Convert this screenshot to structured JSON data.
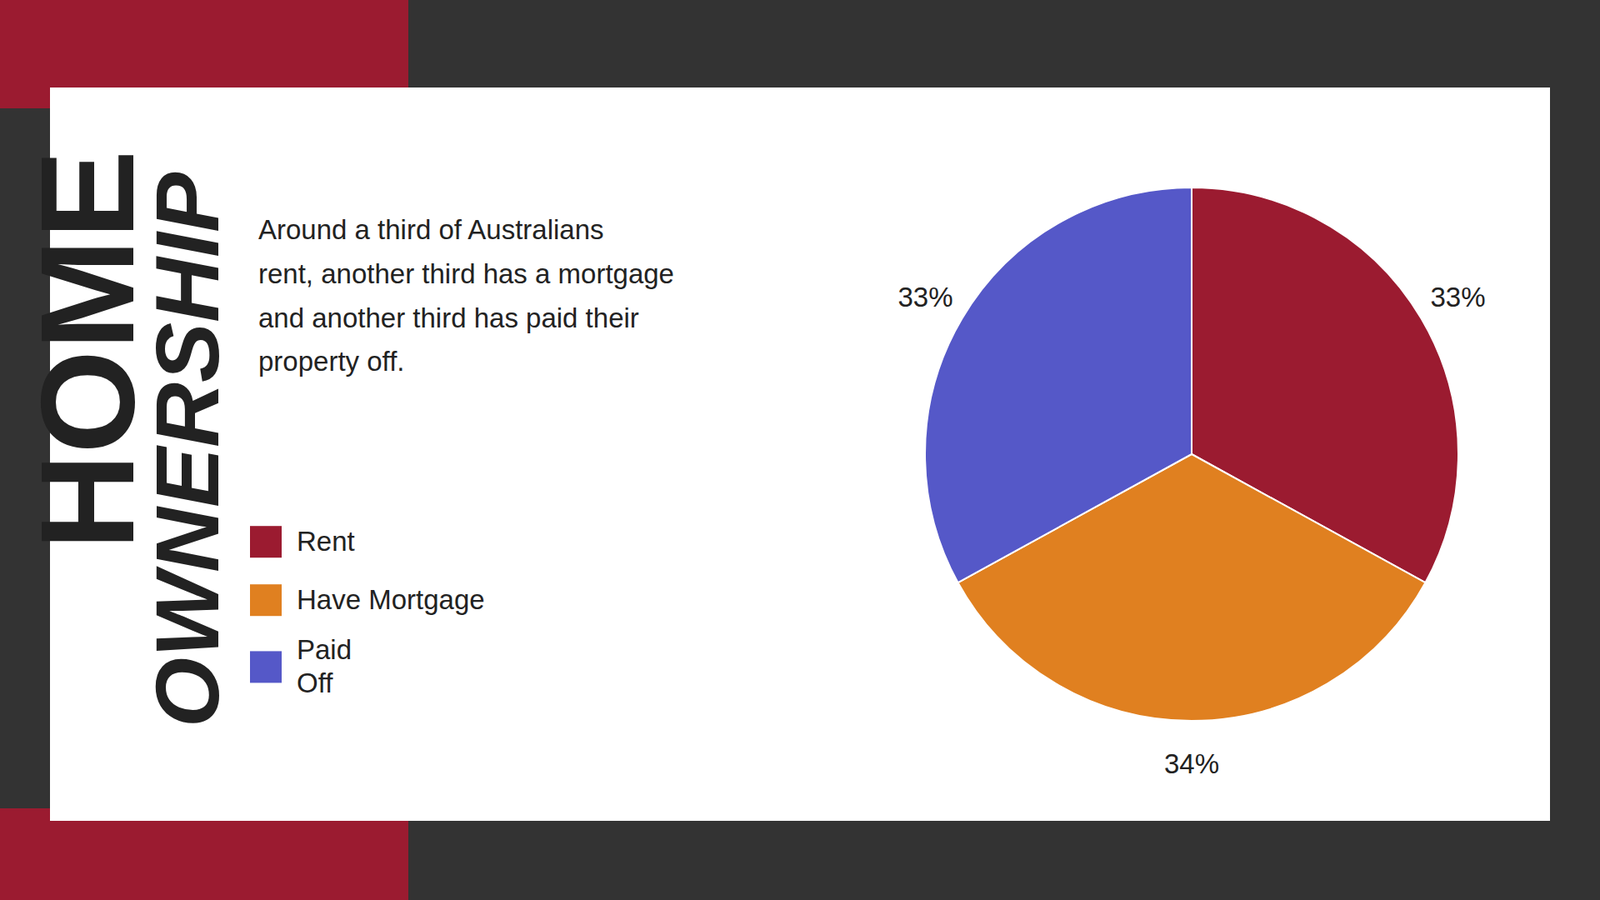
{
  "chart_data": {
    "type": "pie",
    "title": "HOME",
    "subtitle": "OWNERSHIP",
    "annotations": [
      "Around a third of Australians\nrent, another third has a mortgage\nand another third has paid their\nproperty off."
    ],
    "categories": [
      "Rent",
      "Have Mortgage",
      "Paid\nOff"
    ],
    "values": [
      33,
      34,
      33
    ],
    "value_labels": [
      "33%",
      "34%",
      "33%"
    ],
    "data_labels": true,
    "colors": [
      "#9B1B30",
      "#E08020",
      "#5558C8"
    ],
    "legend": "left"
  }
}
